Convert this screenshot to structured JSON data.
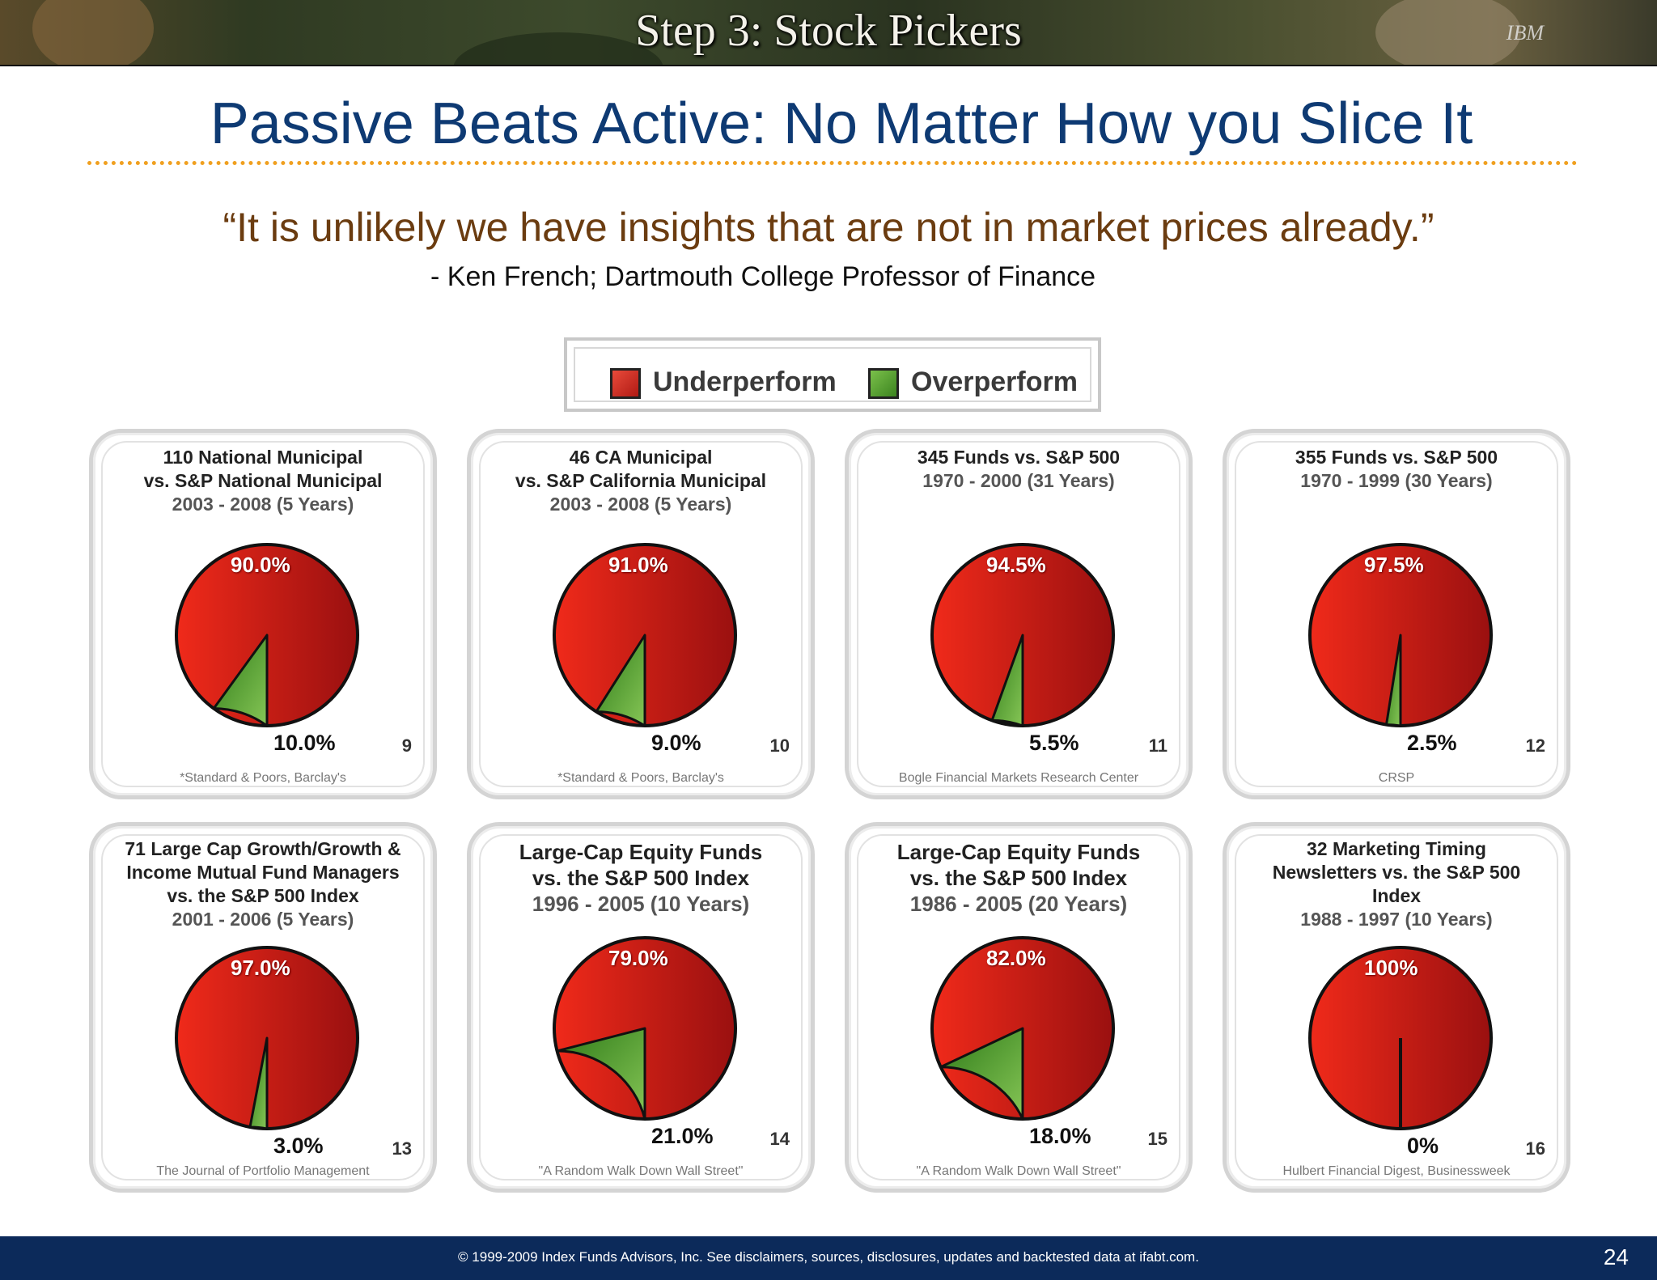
{
  "banner": {
    "title": "Step 3: Stock Pickers",
    "mark": "IBM"
  },
  "slide_title": "Passive Beats Active:  No Matter How you Slice It",
  "quote": "“It is unlikely we have insights that are not in market prices already.”",
  "attribution": "-  Ken French; Dartmouth College Professor of Finance",
  "legend": {
    "under": "Underperform",
    "over": "Overperform",
    "under_color": "#d42a1e",
    "over_color": "#4f9a2c"
  },
  "footer": {
    "text": "© 1999-2009 Index Funds Advisors, Inc. See disclaimers, sources, disclosures, updates and backtested data at ifabt.com.",
    "page": "24"
  },
  "chart_data": [
    {
      "type": "pie",
      "title_lines": [
        "110 National Municipal",
        "vs. S&P National Municipal"
      ],
      "period": "2003 - 2008 (5 Years)",
      "categories": [
        "Underperform",
        "Overperform"
      ],
      "values": [
        90.0,
        10.0
      ],
      "labels": [
        "90.0%",
        "10.0%"
      ],
      "number": "9",
      "source": "*Standard & Poors, Barclay's"
    },
    {
      "type": "pie",
      "title_lines": [
        "46 CA Municipal",
        "vs. S&P California Municipal"
      ],
      "period": "2003 - 2008 (5 Years)",
      "categories": [
        "Underperform",
        "Overperform"
      ],
      "values": [
        91.0,
        9.0
      ],
      "labels": [
        "91.0%",
        "9.0%"
      ],
      "number": "10",
      "source": "*Standard & Poors, Barclay's"
    },
    {
      "type": "pie",
      "title_lines": [
        "345 Funds vs. S&P 500"
      ],
      "period": "1970 - 2000 (31 Years)",
      "categories": [
        "Underperform",
        "Overperform"
      ],
      "values": [
        94.5,
        5.5
      ],
      "labels": [
        "94.5%",
        "5.5%"
      ],
      "number": "11",
      "source": "Bogle Financial Markets Research Center"
    },
    {
      "type": "pie",
      "title_lines": [
        "355 Funds vs. S&P 500"
      ],
      "period": "1970 - 1999 (30 Years)",
      "categories": [
        "Underperform",
        "Overperform"
      ],
      "values": [
        97.5,
        2.5
      ],
      "labels": [
        "97.5%",
        "2.5%"
      ],
      "number": "12",
      "source": "CRSP"
    },
    {
      "type": "pie",
      "title_lines": [
        "71 Large Cap Growth/Growth &",
        "Income Mutual Fund Managers",
        "vs. the S&P 500 Index"
      ],
      "period": "2001 - 2006 (5 Years)",
      "categories": [
        "Underperform",
        "Overperform"
      ],
      "values": [
        97.0,
        3.0
      ],
      "labels": [
        "97.0%",
        "3.0%"
      ],
      "number": "13",
      "source": "The Journal of Portfolio Management"
    },
    {
      "type": "pie",
      "title_lines": [
        "Large-Cap Equity Funds",
        "vs. the S&P 500 Index"
      ],
      "period": "1996 - 2005 (10 Years)",
      "categories": [
        "Underperform",
        "Overperform"
      ],
      "values": [
        79.0,
        21.0
      ],
      "labels": [
        "79.0%",
        "21.0%"
      ],
      "number": "14",
      "source": "\"A Random Walk Down Wall Street\""
    },
    {
      "type": "pie",
      "title_lines": [
        "Large-Cap Equity Funds",
        "vs. the S&P 500 Index"
      ],
      "period": "1986 - 2005 (20 Years)",
      "categories": [
        "Underperform",
        "Overperform"
      ],
      "values": [
        82.0,
        18.0
      ],
      "labels": [
        "82.0%",
        "18.0%"
      ],
      "number": "15",
      "source": "\"A Random Walk Down Wall Street\""
    },
    {
      "type": "pie",
      "title_lines": [
        "32 Marketing Timing",
        "Newsletters vs. the S&P 500",
        "Index"
      ],
      "period": "1988 - 1997 (10 Years)",
      "categories": [
        "Underperform",
        "Overperform"
      ],
      "values": [
        100,
        0
      ],
      "labels": [
        "100%",
        "0%"
      ],
      "number": "16",
      "source": "Hulbert Financial Digest, Businessweek"
    }
  ]
}
